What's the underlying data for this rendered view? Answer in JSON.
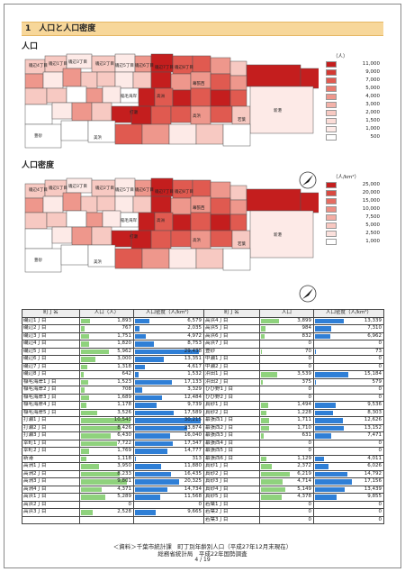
{
  "heading": "1　人口と人口密度",
  "map1": {
    "title": "人口",
    "legend_unit": "（人）",
    "legend": [
      "11,000",
      "9,000",
      "7,000",
      "5,000",
      "4,000",
      "3,000",
      "2,000",
      "1,500",
      "1,000",
      "500"
    ],
    "labels": [
      "磯辺4丁目",
      "磯辺1丁目",
      "磯辺3丁目",
      "磯辺2丁目",
      "磯辺5丁目",
      "磯辺6丁目",
      "磯辺7丁目",
      "磯辺8丁目",
      "豊砂",
      "幕張西",
      "稲毛海岸",
      "高洲",
      "高浜",
      "打瀬",
      "若葉",
      "美浜",
      "新港"
    ]
  },
  "map2": {
    "title": "人口密度",
    "legend_unit": "（人/km²）",
    "legend": [
      "25,000",
      "20,000",
      "15,000",
      "10,000",
      "7,500",
      "5,000",
      "2,500",
      "1,000"
    ],
    "labels": [
      "磯辺4丁目",
      "磯辺1丁目",
      "磯辺3丁目",
      "磯辺2丁目",
      "磯辺5丁目",
      "磯辺6丁目",
      "磯辺7丁目",
      "磯辺8丁目",
      "豊砂",
      "幕張西",
      "稲毛海岸",
      "高洲",
      "高浜",
      "打瀬",
      "若葉",
      "美浜",
      "新港"
    ]
  },
  "table": {
    "headers": [
      "町丁名",
      "人口（人）",
      "人口密度（人/km²）",
      "町丁名",
      "人口",
      "人口密度（人/km²）"
    ],
    "left_rows": [
      [
        "磯辺1丁目",
        "1,893",
        "6,579"
      ],
      [
        "磯辺2丁目",
        "767",
        "2,035"
      ],
      [
        "磯辺3丁目",
        "1,751",
        "4,972"
      ],
      [
        "磯辺4丁目",
        "1,820",
        "8,753"
      ],
      [
        "磯辺5丁目",
        "5,962",
        "29,438"
      ],
      [
        "磯辺6丁目",
        "3,000",
        "13,351"
      ],
      [
        "磯辺7丁目",
        "1,318",
        "4,617"
      ],
      [
        "磯辺8丁目",
        "642",
        "1,532"
      ],
      [
        "稲毛海岸1丁目",
        "1,523",
        "17,133"
      ],
      [
        "稲毛海岸2丁目",
        "708",
        "3,329"
      ],
      [
        "稲毛海岸3丁目",
        "1,689",
        "12,484"
      ],
      [
        "稲毛海岸4丁目",
        "1,178",
        "9,739"
      ],
      [
        "稲毛海岸5丁目",
        "3,526",
        "17,589"
      ],
      [
        "打瀬1丁目",
        "10,543",
        "30,215"
      ],
      [
        "打瀬2丁目",
        "8,426",
        "23,874"
      ],
      [
        "打瀬3丁目",
        "6,430",
        "16,040"
      ],
      [
        "幸町1丁目",
        "7,722",
        "17,347"
      ],
      [
        "幸町2丁目",
        "1,769",
        "14,777"
      ],
      [
        "新港",
        "1,118",
        "313"
      ],
      [
        "高洲1丁目",
        "3,950",
        "11,880"
      ],
      [
        "高洲2丁目",
        "8,233",
        "16,435"
      ],
      [
        "高洲3丁目",
        "9,801",
        "20,325"
      ],
      [
        "高洲4丁目",
        "4,371",
        "14,734"
      ],
      [
        "高浜1丁目",
        "5,289",
        "11,568"
      ],
      [
        "高浜2丁目",
        "0",
        "0"
      ],
      [
        "高浜3丁目",
        "2,528",
        "9,665"
      ]
    ],
    "right_rows": [
      [
        "高浜4丁目",
        "3,899",
        "13,339"
      ],
      [
        "高浜5丁目",
        "984",
        "7,310"
      ],
      [
        "高浜6丁目",
        "832",
        "6,962"
      ],
      [
        "高浜7丁目",
        "0",
        "0"
      ],
      [
        "豊砂",
        "70",
        "73"
      ],
      [
        "中瀬1丁目",
        "0",
        "0"
      ],
      [
        "中瀬2丁目",
        "0",
        "0"
      ],
      [
        "浜田1丁目",
        "3,539",
        "15,184"
      ],
      [
        "浜田2丁目",
        "375",
        "579"
      ],
      [
        "ひび野1丁目",
        "0",
        "0"
      ],
      [
        "ひび野2丁目",
        "0",
        "0"
      ],
      [
        "真砂1丁目",
        "1,494",
        "9,536"
      ],
      [
        "真砂2丁目",
        "1,228",
        "8,303"
      ],
      [
        "幕張西1丁目",
        "1,711",
        "12,626"
      ],
      [
        "幕張西2丁目",
        "1,710",
        "13,152"
      ],
      [
        "幕張西3丁目",
        "631",
        "7,471"
      ],
      [
        "幕張西4丁目",
        "0",
        "0"
      ],
      [
        "幕張西5丁目",
        "0",
        "0"
      ],
      [
        "幕張西6丁目",
        "1,129",
        "4,011"
      ],
      [
        "真砂1丁目",
        "2,372",
        "6,026"
      ],
      [
        "真砂2丁目",
        "6,219",
        "14,792"
      ],
      [
        "真砂3丁目",
        "4,714",
        "17,156"
      ],
      [
        "真砂4丁目",
        "5,149",
        "13,439"
      ],
      [
        "真砂5丁目",
        "4,378",
        "9,855"
      ],
      [
        "若葉1丁目",
        "0",
        "0"
      ],
      [
        "若葉2丁目",
        "0",
        "0"
      ],
      [
        "若葉3丁目",
        "0",
        "0"
      ]
    ]
  },
  "source_line1": "＜資料＞千葉市統計課　町丁別年齢別人口（平成27年12月末現在）",
  "source_line2": "総務省統計局　平成22年国勢調査",
  "page_number": "4 / 19",
  "colors": {
    "heading_bg": "#f7d79a",
    "pop_bar": "#8fd27d",
    "density_bar": "#2f7fd6",
    "map_red": "#d9312c"
  }
}
